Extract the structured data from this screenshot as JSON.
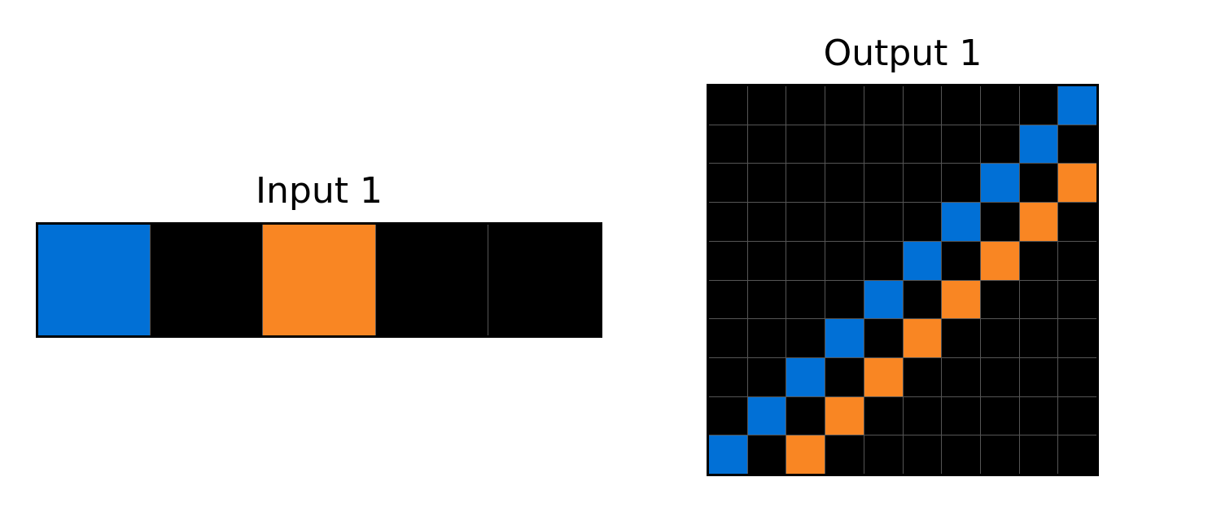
{
  "palette": {
    "0": "#000000",
    "1": "#0170d6",
    "7": "#f98623"
  },
  "input": {
    "title": "Input 1",
    "rows": 1,
    "cols": 5,
    "cells": [
      [
        1,
        0,
        7,
        0,
        0
      ]
    ]
  },
  "output": {
    "title": "Output 1",
    "rows": 10,
    "cols": 10,
    "cells": [
      [
        0,
        0,
        0,
        0,
        0,
        0,
        0,
        0,
        0,
        1
      ],
      [
        0,
        0,
        0,
        0,
        0,
        0,
        0,
        0,
        1,
        0
      ],
      [
        0,
        0,
        0,
        0,
        0,
        0,
        0,
        1,
        0,
        7
      ],
      [
        0,
        0,
        0,
        0,
        0,
        0,
        1,
        0,
        7,
        0
      ],
      [
        0,
        0,
        0,
        0,
        0,
        1,
        0,
        7,
        0,
        0
      ],
      [
        0,
        0,
        0,
        0,
        1,
        0,
        7,
        0,
        0,
        0
      ],
      [
        0,
        0,
        0,
        1,
        0,
        7,
        0,
        0,
        0,
        0
      ],
      [
        0,
        0,
        1,
        0,
        7,
        0,
        0,
        0,
        0,
        0
      ],
      [
        0,
        1,
        0,
        7,
        0,
        0,
        0,
        0,
        0,
        0
      ],
      [
        1,
        0,
        7,
        0,
        0,
        0,
        0,
        0,
        0,
        0
      ]
    ]
  }
}
